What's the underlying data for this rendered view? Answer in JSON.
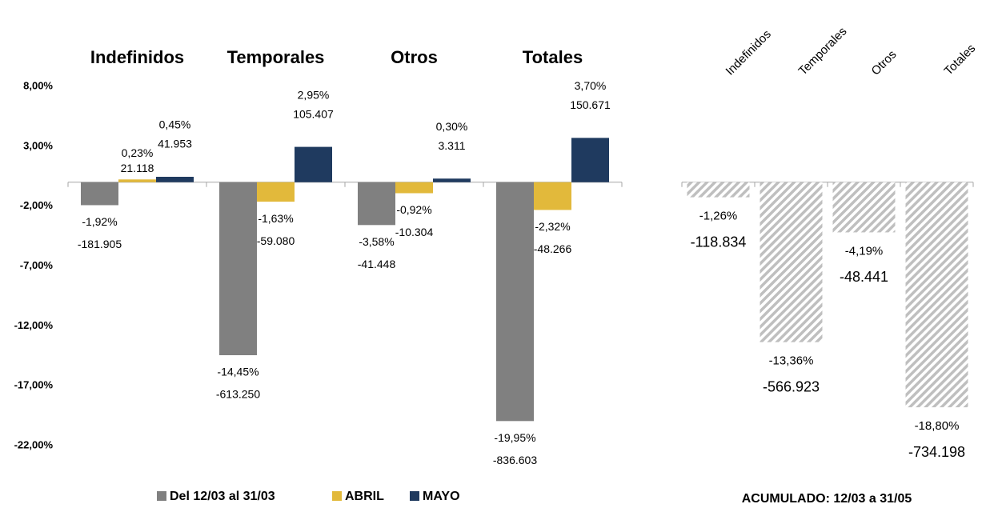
{
  "chart_data": [
    {
      "type": "bar",
      "categories": [
        "Indefinidos",
        "Temporales",
        "Otros",
        "Totales"
      ],
      "series": [
        {
          "name": "Del 12/03 al 31/03",
          "color": "#808080",
          "values": [
            -1.92,
            -14.45,
            -3.58,
            -19.95
          ],
          "value_labels": [
            "-1,92%",
            "-14,45%",
            "-3,58%",
            "-19,95%"
          ],
          "counts": [
            -181905,
            -613250,
            -41448,
            -836603
          ],
          "count_labels": [
            "-181.905",
            "-613.250",
            "-41.448",
            "-836.603"
          ]
        },
        {
          "name": "ABRIL",
          "color": "#e2b93b",
          "values": [
            0.23,
            -1.63,
            -0.92,
            -2.32
          ],
          "value_labels": [
            "0,23%",
            "-1,63%",
            "-0,92%",
            "-2,32%"
          ],
          "counts": [
            21118,
            -59080,
            -10304,
            -48266
          ],
          "count_labels": [
            "21.118",
            "-59.080",
            "-10.304",
            "-48.266"
          ]
        },
        {
          "name": "MAYO",
          "color": "#1f3a5f",
          "values": [
            0.45,
            2.95,
            0.3,
            3.7
          ],
          "value_labels": [
            "0,45%",
            "2,95%",
            "0,30%",
            "3,70%"
          ],
          "counts": [
            41953,
            105407,
            3311,
            150671
          ],
          "count_labels": [
            "41.953",
            "105.407",
            "3.311",
            "150.671"
          ]
        }
      ],
      "ylim": [
        -22,
        8
      ],
      "yticks": [
        {
          "value": 8,
          "label": "8,00%"
        },
        {
          "value": 3,
          "label": "3,00%"
        },
        {
          "value": -2,
          "label": "-2,00%"
        },
        {
          "value": -7,
          "label": "-7,00%"
        },
        {
          "value": -12,
          "label": "-12,00%"
        },
        {
          "value": -17,
          "label": "-17,00%"
        },
        {
          "value": -22,
          "label": "-22,00%"
        }
      ],
      "legend": "bottom"
    },
    {
      "type": "bar",
      "title": "ACUMULADO: 12/03 a 31/05",
      "categories": [
        "Indefinidos",
        "Temporales",
        "Otros",
        "Totales"
      ],
      "values": [
        -1.26,
        -13.36,
        -4.19,
        -18.8
      ],
      "value_labels": [
        "-1,26%",
        "-13,36%",
        "-4,19%",
        "-18,80%"
      ],
      "counts": [
        -118834,
        -566923,
        -48441,
        -734198
      ],
      "count_labels": [
        "-118.834",
        "-566.923",
        "-48.441",
        "-734.198"
      ],
      "color": "#bfbfbf",
      "hatch": true,
      "ylim": [
        -22,
        8
      ]
    }
  ]
}
